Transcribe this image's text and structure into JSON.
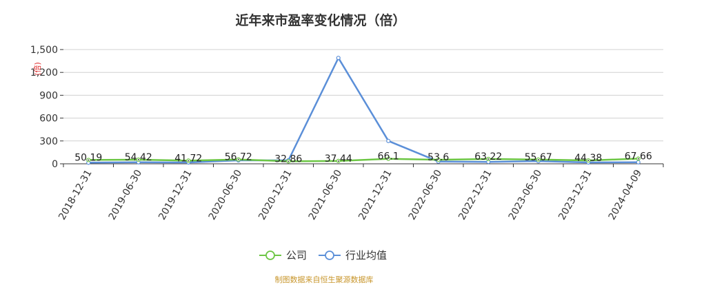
{
  "chart_data": {
    "type": "line",
    "title": "近年来市盈率变化情况（倍）",
    "ylabel": "(倍)",
    "xlabel": "",
    "ylim": [
      0,
      1500
    ],
    "yticks": [
      "0",
      "300",
      "600",
      "900",
      "1,200",
      "1,500"
    ],
    "ytick_values": [
      0,
      300,
      600,
      900,
      1200,
      1500
    ],
    "grid": true,
    "legend_position": "bottom-center",
    "categories": [
      "2018-12-31",
      "2019-06-30",
      "2019-12-31",
      "2020-06-30",
      "2020-12-31",
      "2021-06-30",
      "2021-12-31",
      "2022-06-30",
      "2022-12-31",
      "2023-06-30",
      "2023-12-31",
      "2024-04-09"
    ],
    "series": [
      {
        "name": "公司",
        "color": "#6cc644",
        "values": [
          50.19,
          54.42,
          41.72,
          56.72,
          32.86,
          37.44,
          66.1,
          53.6,
          63.22,
          55.67,
          44.38,
          67.66
        ],
        "labels": [
          "50.19",
          "54.42",
          "41.72",
          "56.72",
          "32.86",
          "37.44",
          "66.1",
          "53.6",
          "63.22",
          "55.67",
          "44.38",
          "67.66"
        ]
      },
      {
        "name": "行业均值",
        "color": "#5b8fd8",
        "values": [
          15,
          20,
          18,
          45,
          45,
          1390,
          300,
          30,
          25,
          35,
          18,
          20
        ]
      }
    ],
    "source": "制图数据来自恒生聚源数据库"
  }
}
